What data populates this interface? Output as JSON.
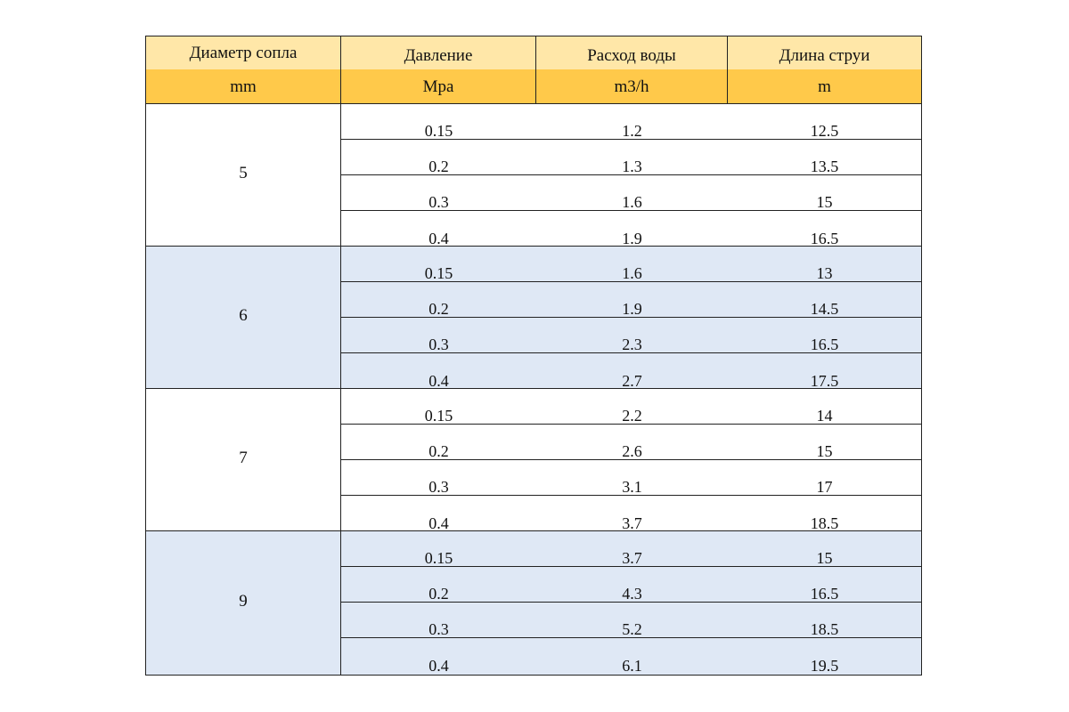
{
  "header": {
    "titles": [
      "Диаметр сопла",
      "Давление",
      "Расход воды",
      "Длина струи"
    ],
    "units": [
      "mm",
      "Mpa",
      "m3/h",
      "m"
    ]
  },
  "groups": [
    {
      "diameter": "5",
      "rows": [
        {
          "pressure": "0.15",
          "flow": "1.2",
          "length": "12.5"
        },
        {
          "pressure": "0.2",
          "flow": "1.3",
          "length": "13.5"
        },
        {
          "pressure": "0.3",
          "flow": "1.6",
          "length": "15"
        },
        {
          "pressure": "0.4",
          "flow": "1.9",
          "length": "16.5"
        }
      ]
    },
    {
      "diameter": "6",
      "rows": [
        {
          "pressure": "0.15",
          "flow": "1.6",
          "length": "13"
        },
        {
          "pressure": "0.2",
          "flow": "1.9",
          "length": "14.5"
        },
        {
          "pressure": "0.3",
          "flow": "2.3",
          "length": "16.5"
        },
        {
          "pressure": "0.4",
          "flow": "2.7",
          "length": "17.5"
        }
      ]
    },
    {
      "diameter": "7",
      "rows": [
        {
          "pressure": "0.15",
          "flow": "2.2",
          "length": "14"
        },
        {
          "pressure": "0.2",
          "flow": "2.6",
          "length": "15"
        },
        {
          "pressure": "0.3",
          "flow": "3.1",
          "length": "17"
        },
        {
          "pressure": "0.4",
          "flow": "3.7",
          "length": "18.5"
        }
      ]
    },
    {
      "diameter": "9",
      "rows": [
        {
          "pressure": "0.15",
          "flow": "3.7",
          "length": "15"
        },
        {
          "pressure": "0.2",
          "flow": "4.3",
          "length": "16.5"
        },
        {
          "pressure": "0.3",
          "flow": "5.2",
          "length": "18.5"
        },
        {
          "pressure": "0.4",
          "flow": "6.1",
          "length": "19.5"
        }
      ]
    }
  ],
  "colors": {
    "header_top": "#ffe7a8",
    "header_units": "#ffc94a",
    "group_blue": "#dfe8f5",
    "group_white": "#ffffff"
  }
}
